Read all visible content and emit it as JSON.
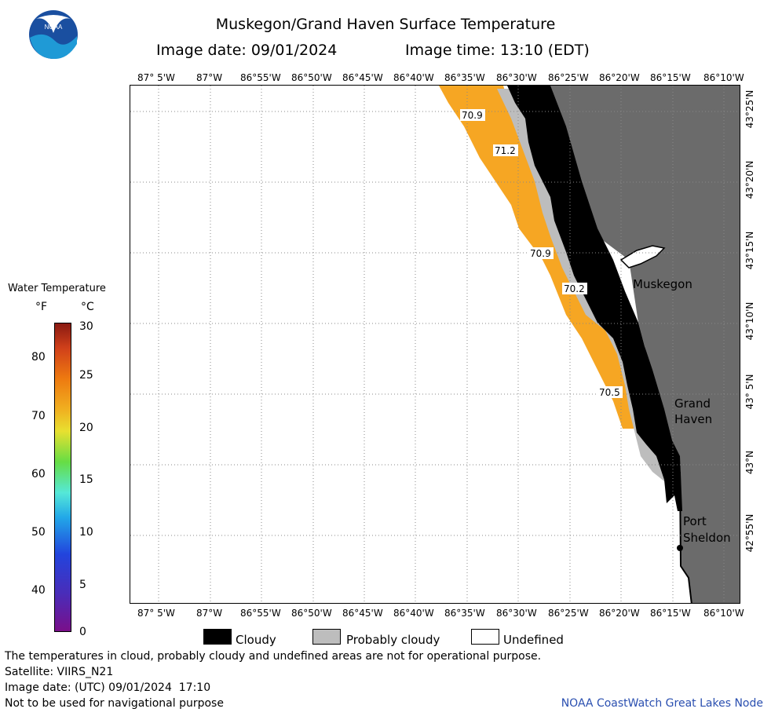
{
  "header": {
    "title": "Muskegon/Grand Haven Surface Temperature",
    "date_line": "Image date: 09/01/2024",
    "time_line": "Image time: 13:10 (EDT)",
    "logo_text": "NOAA"
  },
  "map": {
    "lon_ticks": [
      "87° 5'W",
      "87°W",
      "86°55'W",
      "86°50'W",
      "86°45'W",
      "86°40'W",
      "86°35'W",
      "86°30'W",
      "86°25'W",
      "86°20'W",
      "86°15'W",
      "86°10'W"
    ],
    "lat_ticks": [
      "43°25'N",
      "43°20'N",
      "43°15'N",
      "43°10'N",
      "43° 5'N",
      "43°N",
      "42°55'N"
    ],
    "places": {
      "muskegon": "Muskegon",
      "grand_haven_1": "Grand",
      "grand_haven_2": "Haven",
      "port_sheldon_1": "Port",
      "port_sheldon_2": "Sheldon"
    },
    "contours": [
      "70.9",
      "71.2",
      "70.9",
      "70.2",
      "70.5"
    ],
    "colors": {
      "water_warm": "#f6a623",
      "cloud": "#000000",
      "probably_cloudy": "#bdbdbd",
      "land": "#6b6b6b",
      "undefined": "#ffffff"
    }
  },
  "colorbar": {
    "title": "Water Temperature",
    "unit_f": "°F",
    "unit_c": "°C",
    "f_ticks": [
      "80",
      "70",
      "60",
      "50",
      "40"
    ],
    "c_ticks": [
      "30",
      "25",
      "20",
      "15",
      "10",
      "5",
      "0"
    ]
  },
  "legend": {
    "cloudy": "Cloudy",
    "probably_cloudy": "Probably cloudy",
    "undefined": "Undefined"
  },
  "footer": {
    "disclaimer": "The temperatures in cloud, probably cloudy and undefined areas are not for operational purpose.",
    "satellite": "Satellite: VIIRS_N21",
    "utc_date": "Image date: (UTC) 09/01/2024  17:10",
    "nav_note": "Not to be used for navigational purpose",
    "credit": "NOAA CoastWatch Great Lakes Node"
  }
}
